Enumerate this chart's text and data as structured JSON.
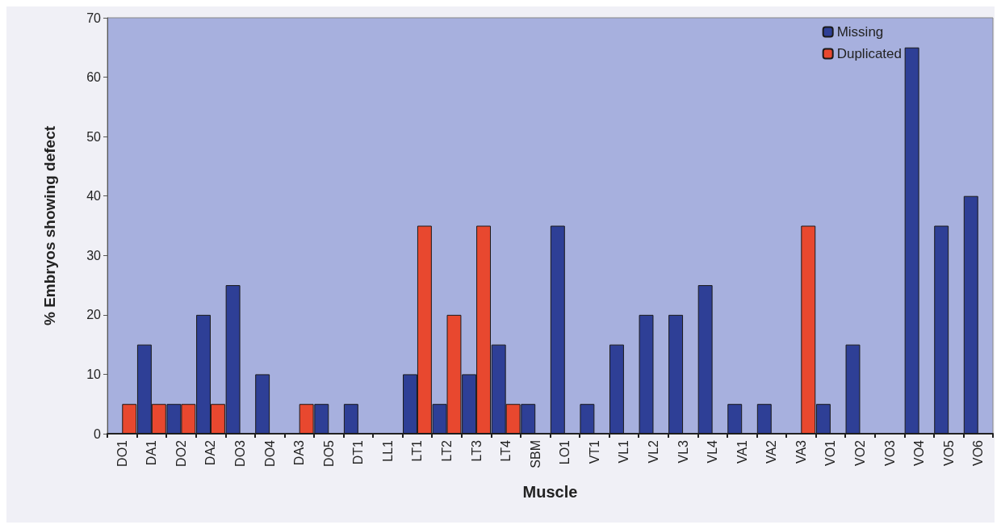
{
  "chart_data": {
    "type": "bar",
    "xlabel": "Muscle",
    "ylabel": "% Embryos showing defect",
    "categories": [
      "DO1",
      "DA1",
      "DO2",
      "DA2",
      "DO3",
      "DO4",
      "DA3",
      "DO5",
      "DT1",
      "LL1",
      "LT1",
      "LT2",
      "LT3",
      "LT4",
      "SBM",
      "LO1",
      "VT1",
      "VL1",
      "VL2",
      "VL3",
      "VL4",
      "VA1",
      "VA2",
      "VA3",
      "VO1",
      "VO2",
      "VO3",
      "VO4",
      "VO5",
      "VO6"
    ],
    "series": [
      {
        "name": "Missing",
        "color": "#2e3f96",
        "values": [
          0,
          15,
          5,
          20,
          25,
          10,
          0,
          5,
          5,
          0,
          10,
          5,
          10,
          15,
          5,
          35,
          5,
          15,
          20,
          20,
          25,
          5,
          5,
          0,
          5,
          15,
          0,
          65,
          35,
          40
        ]
      },
      {
        "name": "Duplicated",
        "color": "#e8482f",
        "values": [
          5,
          5,
          5,
          5,
          0,
          0,
          5,
          0,
          0,
          0,
          35,
          20,
          35,
          5,
          0,
          0,
          0,
          0,
          0,
          0,
          0,
          0,
          0,
          35,
          0,
          0,
          0,
          0,
          0,
          0
        ]
      }
    ],
    "ylim": [
      0,
      70
    ],
    "yticks": [
      0,
      10,
      20,
      30,
      40,
      50,
      60,
      70
    ],
    "grid": false,
    "legend": "top right"
  }
}
